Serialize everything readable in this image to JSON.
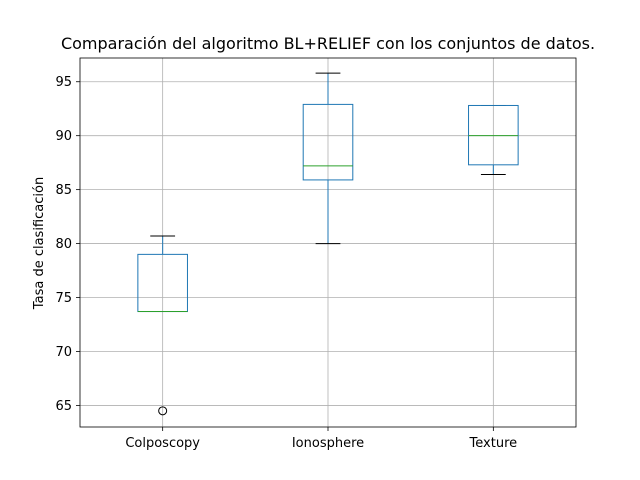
{
  "chart_data": {
    "type": "box",
    "title": "Comparación del algoritmo BL+RELIEF con los conjuntos de datos.",
    "xlabel": "",
    "ylabel": "Tasa de clasificación",
    "ylim": [
      63,
      97.2
    ],
    "yticks": [
      65,
      70,
      75,
      80,
      85,
      90,
      95
    ],
    "grid": true,
    "categories": [
      "Colposcopy",
      "Ionosphere",
      "Texture"
    ],
    "boxes": [
      {
        "category": "Colposcopy",
        "whislo": 73.7,
        "q1": 73.7,
        "med": 73.7,
        "q3": 79.0,
        "whishi": 80.7,
        "fliers": [
          64.5
        ]
      },
      {
        "category": "Ionosphere",
        "whislo": 80.0,
        "q1": 85.9,
        "med": 87.2,
        "q3": 92.9,
        "whishi": 95.8,
        "fliers": []
      },
      {
        "category": "Texture",
        "whislo": 86.4,
        "q1": 87.3,
        "med": 90.0,
        "q3": 92.8,
        "whishi": 92.8,
        "fliers": []
      }
    ],
    "colors": {
      "box": "#1f77b4",
      "median": "#2ca02c",
      "whisker": "#1f77b4",
      "cap": "#000000",
      "flier": "#000000",
      "grid": "#b0b0b0",
      "axes": "#000000"
    }
  }
}
